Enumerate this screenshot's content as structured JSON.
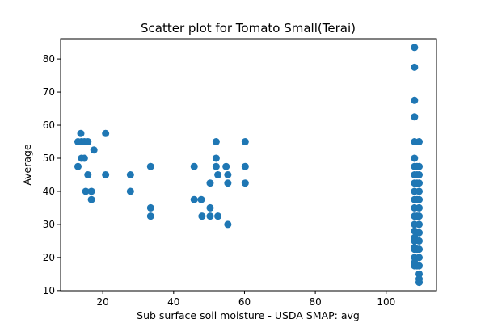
{
  "chart_data": {
    "type": "scatter",
    "title": "Scatter plot for Tomato Small(Terai)",
    "xlabel": "Sub surface soil moisture - USDA SMAP: avg",
    "ylabel": "Average",
    "xlim": [
      8.1,
      114.2
    ],
    "ylim": [
      9.96,
      86.13
    ],
    "xticks": [
      20,
      40,
      60,
      80,
      100
    ],
    "yticks": [
      10,
      20,
      30,
      40,
      50,
      60,
      70,
      80
    ],
    "grid": false,
    "legend": "none",
    "marker_color": "#1f77b4",
    "points": [
      [
        13.0,
        55.0
      ],
      [
        13.0,
        47.5
      ],
      [
        13.8,
        57.5
      ],
      [
        14.0,
        55.0
      ],
      [
        14.0,
        50.0
      ],
      [
        14.8,
        55.0
      ],
      [
        14.8,
        50.0
      ],
      [
        15.2,
        40.0
      ],
      [
        15.8,
        55.0
      ],
      [
        15.8,
        45.0
      ],
      [
        16.8,
        40.0
      ],
      [
        16.8,
        37.5
      ],
      [
        17.5,
        52.5
      ],
      [
        20.8,
        57.5
      ],
      [
        20.8,
        45.0
      ],
      [
        27.8,
        45.0
      ],
      [
        27.8,
        40.0
      ],
      [
        33.5,
        47.5
      ],
      [
        33.5,
        35.0
      ],
      [
        33.5,
        32.5
      ],
      [
        45.8,
        47.5
      ],
      [
        45.8,
        37.5
      ],
      [
        47.8,
        37.5
      ],
      [
        48.0,
        32.5
      ],
      [
        50.3,
        42.5
      ],
      [
        50.3,
        35.0
      ],
      [
        50.3,
        32.5
      ],
      [
        52.0,
        55.0
      ],
      [
        52.0,
        50.0
      ],
      [
        52.0,
        47.5
      ],
      [
        52.5,
        45.0
      ],
      [
        52.5,
        32.5
      ],
      [
        54.8,
        47.5
      ],
      [
        55.3,
        45.0
      ],
      [
        55.3,
        42.5
      ],
      [
        55.3,
        30.0
      ],
      [
        60.2,
        55.0
      ],
      [
        60.2,
        47.5
      ],
      [
        60.2,
        42.5
      ],
      [
        108.0,
        83.5
      ],
      [
        108.0,
        77.5
      ],
      [
        108.0,
        67.5
      ],
      [
        108.0,
        62.5
      ],
      [
        108.0,
        55.0
      ],
      [
        108.0,
        50.0
      ],
      [
        108.0,
        47.5
      ],
      [
        108.0,
        45.0
      ],
      [
        108.0,
        42.5
      ],
      [
        108.0,
        40.0
      ],
      [
        108.0,
        37.5
      ],
      [
        108.0,
        35.0
      ],
      [
        108.0,
        32.5
      ],
      [
        108.0,
        30.0
      ],
      [
        108.0,
        28.0
      ],
      [
        108.0,
        26.0
      ],
      [
        108.0,
        25.0
      ],
      [
        108.0,
        23.0
      ],
      [
        108.0,
        22.5
      ],
      [
        108.0,
        20.0
      ],
      [
        108.0,
        18.5
      ],
      [
        108.0,
        17.5
      ],
      [
        108.7,
        47.5
      ],
      [
        108.7,
        45.0
      ],
      [
        108.7,
        42.5
      ],
      [
        108.7,
        37.5
      ],
      [
        108.7,
        32.5
      ],
      [
        108.7,
        27.5
      ],
      [
        108.7,
        22.5
      ],
      [
        108.7,
        17.5
      ],
      [
        109.3,
        55.0
      ],
      [
        109.3,
        47.5
      ],
      [
        109.3,
        45.0
      ],
      [
        109.3,
        42.5
      ],
      [
        109.3,
        40.0
      ],
      [
        109.3,
        37.5
      ],
      [
        109.3,
        35.0
      ],
      [
        109.3,
        32.5
      ],
      [
        109.3,
        30.0
      ],
      [
        109.3,
        27.5
      ],
      [
        109.3,
        25.0
      ],
      [
        109.3,
        22.5
      ],
      [
        109.3,
        20.0
      ],
      [
        109.3,
        17.5
      ],
      [
        109.3,
        15.0
      ],
      [
        109.3,
        13.5
      ],
      [
        109.3,
        12.5
      ]
    ]
  }
}
